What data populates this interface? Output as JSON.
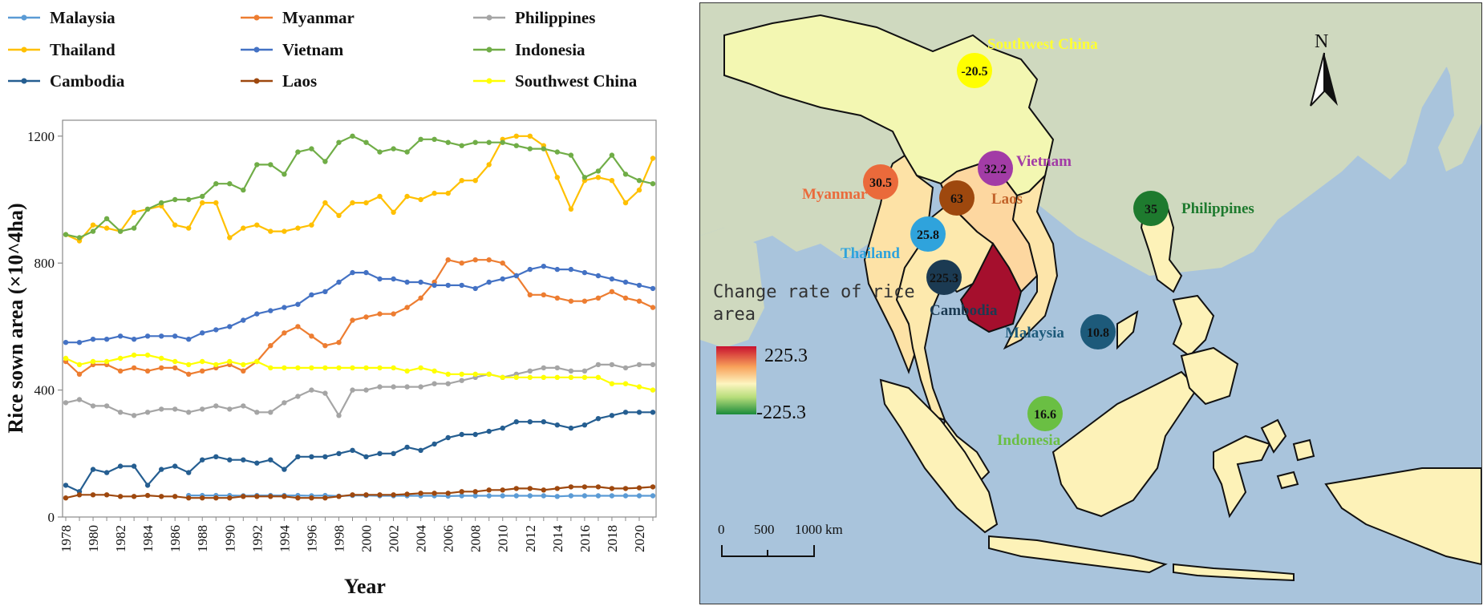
{
  "chart_data": {
    "type": "line",
    "xlabel": "Year",
    "ylabel": "Rice sown area (×10^4ha)",
    "xlim": [
      1978,
      2021
    ],
    "ylim": [
      0,
      1250
    ],
    "yticks": [
      0,
      400,
      800,
      1200
    ],
    "xticks": [
      "1978",
      "1980",
      "1982",
      "1984",
      "1986",
      "1988",
      "1990",
      "1992",
      "1994",
      "1996",
      "1998",
      "2000",
      "2002",
      "2004",
      "2006",
      "2008",
      "2010",
      "2012",
      "2014",
      "2016",
      "2018",
      "2020"
    ],
    "legend_position": "top",
    "grid": false,
    "x": [
      1978,
      1979,
      1980,
      1981,
      1982,
      1983,
      1984,
      1985,
      1986,
      1987,
      1988,
      1989,
      1990,
      1991,
      1992,
      1993,
      1994,
      1995,
      1996,
      1997,
      1998,
      1999,
      2000,
      2001,
      2002,
      2003,
      2004,
      2005,
      2006,
      2007,
      2008,
      2009,
      2010,
      2011,
      2012,
      2013,
      2014,
      2015,
      2016,
      2017,
      2018,
      2019,
      2020,
      2021
    ],
    "series": [
      {
        "name": "Malaysia",
        "color": "#5b9bd5",
        "values": [
          null,
          null,
          null,
          null,
          null,
          null,
          null,
          null,
          null,
          68,
          68,
          68,
          68,
          67,
          68,
          68,
          68,
          68,
          67,
          68,
          66,
          68,
          68,
          67,
          67,
          67,
          67,
          67,
          66,
          67,
          67,
          67,
          67,
          67,
          67,
          67,
          65,
          67,
          67,
          67,
          67,
          67,
          67,
          67
        ]
      },
      {
        "name": "Myanmar",
        "color": "#ed7d31",
        "values": [
          490,
          450,
          480,
          480,
          460,
          470,
          460,
          470,
          470,
          450,
          460,
          470,
          480,
          460,
          490,
          540,
          580,
          600,
          570,
          540,
          550,
          620,
          630,
          640,
          640,
          660,
          690,
          740,
          810,
          800,
          810,
          810,
          800,
          760,
          700,
          700,
          690,
          680,
          680,
          690,
          710,
          690,
          680,
          660
        ]
      },
      {
        "name": "Philippines",
        "color": "#a5a5a5",
        "values": [
          360,
          370,
          350,
          350,
          330,
          320,
          330,
          340,
          340,
          330,
          340,
          350,
          340,
          350,
          330,
          330,
          360,
          380,
          400,
          390,
          320,
          400,
          400,
          410,
          410,
          410,
          410,
          420,
          420,
          430,
          440,
          450,
          440,
          450,
          460,
          470,
          470,
          460,
          460,
          480,
          480,
          470,
          480,
          480
        ]
      },
      {
        "name": "Thailand",
        "color": "#ffc000",
        "values": [
          890,
          870,
          920,
          910,
          900,
          960,
          970,
          980,
          920,
          910,
          990,
          990,
          880,
          910,
          920,
          900,
          900,
          910,
          920,
          990,
          950,
          990,
          990,
          1010,
          960,
          1010,
          1000,
          1020,
          1020,
          1060,
          1060,
          1110,
          1190,
          1200,
          1200,
          1170,
          1070,
          970,
          1060,
          1070,
          1060,
          990,
          1030,
          1130
        ]
      },
      {
        "name": "Vietnam",
        "color": "#4472c4",
        "values": [
          550,
          550,
          560,
          560,
          570,
          560,
          570,
          570,
          570,
          560,
          580,
          590,
          600,
          620,
          640,
          650,
          660,
          670,
          700,
          710,
          740,
          770,
          770,
          750,
          750,
          740,
          740,
          730,
          730,
          730,
          720,
          740,
          750,
          760,
          780,
          790,
          780,
          780,
          770,
          760,
          750,
          740,
          730,
          720
        ]
      },
      {
        "name": "Indonesia",
        "color": "#70ad47",
        "values": [
          890,
          880,
          900,
          940,
          900,
          910,
          970,
          990,
          1000,
          1000,
          1010,
          1050,
          1050,
          1030,
          1110,
          1110,
          1080,
          1150,
          1160,
          1120,
          1180,
          1200,
          1180,
          1150,
          1160,
          1150,
          1190,
          1190,
          1180,
          1170,
          1180,
          1180,
          1180,
          1170,
          1160,
          1160,
          1150,
          1140,
          1070,
          1090,
          1140,
          1080,
          1060,
          1050
        ]
      },
      {
        "name": "Cambodia",
        "color": "#255e91",
        "values": [
          100,
          80,
          150,
          140,
          160,
          160,
          100,
          150,
          160,
          140,
          180,
          190,
          180,
          180,
          170,
          180,
          150,
          190,
          190,
          190,
          200,
          210,
          190,
          200,
          200,
          220,
          210,
          230,
          250,
          260,
          260,
          270,
          280,
          300,
          300,
          300,
          290,
          280,
          290,
          310,
          320,
          330,
          330,
          330
        ]
      },
      {
        "name": "Laos",
        "color": "#9e480e",
        "values": [
          60,
          70,
          70,
          70,
          65,
          65,
          68,
          65,
          65,
          60,
          60,
          60,
          60,
          65,
          65,
          65,
          65,
          60,
          60,
          60,
          65,
          70,
          70,
          70,
          70,
          72,
          75,
          75,
          75,
          80,
          80,
          85,
          85,
          90,
          90,
          85,
          90,
          95,
          95,
          95,
          90,
          90,
          92,
          95
        ]
      },
      {
        "name": "Southwest China",
        "color": "#ffff00",
        "values": [
          500,
          480,
          490,
          490,
          500,
          510,
          510,
          500,
          490,
          480,
          490,
          480,
          490,
          480,
          490,
          470,
          470,
          470,
          470,
          470,
          470,
          470,
          470,
          470,
          470,
          460,
          470,
          460,
          450,
          450,
          450,
          450,
          440,
          440,
          440,
          440,
          440,
          440,
          440,
          440,
          420,
          420,
          410,
          400
        ]
      }
    ]
  },
  "map": {
    "title_line1": "Change rate of rice",
    "title_line2": "area",
    "north_label": "N",
    "colorbar_max_label": "225.3",
    "colorbar_min_label": "-225.3",
    "colors": {
      "ocean": "#a9c4dc",
      "land_other": "#cfd9bf",
      "land_study": "#fdeeb0"
    },
    "scalebar": {
      "ticks": [
        "0",
        "500",
        "1000"
      ],
      "unit": "km"
    },
    "countries": [
      {
        "name": "Southwest China",
        "value": "-20.5",
        "bubble_color": "#ffff00",
        "label_color": "#ffff33"
      },
      {
        "name": "Vietnam",
        "value": "32.2",
        "bubble_color": "#a23ca6",
        "label_color": "#a23ca6"
      },
      {
        "name": "Myanmar",
        "value": "30.5",
        "bubble_color": "#ea6a3b",
        "label_color": "#ea6a3b"
      },
      {
        "name": "Laos",
        "value": "63",
        "bubble_color": "#9e480e",
        "label_color": "#c2632a"
      },
      {
        "name": "Philippines",
        "value": "35",
        "bubble_color": "#1e7a2e",
        "label_color": "#1e7a2e"
      },
      {
        "name": "Thailand",
        "value": "25.8",
        "bubble_color": "#2fa3dc",
        "label_color": "#2fa3dc"
      },
      {
        "name": "Cambodia",
        "value": "225.3",
        "bubble_color": "#1b3a52",
        "label_color": "#1b3a52"
      },
      {
        "name": "Malaysia",
        "value": "10.8",
        "bubble_color": "#1d5a7a",
        "label_color": "#1d5a7a"
      },
      {
        "name": "Indonesia",
        "value": "16.6",
        "bubble_color": "#6abf43",
        "label_color": "#6abf43"
      }
    ]
  }
}
